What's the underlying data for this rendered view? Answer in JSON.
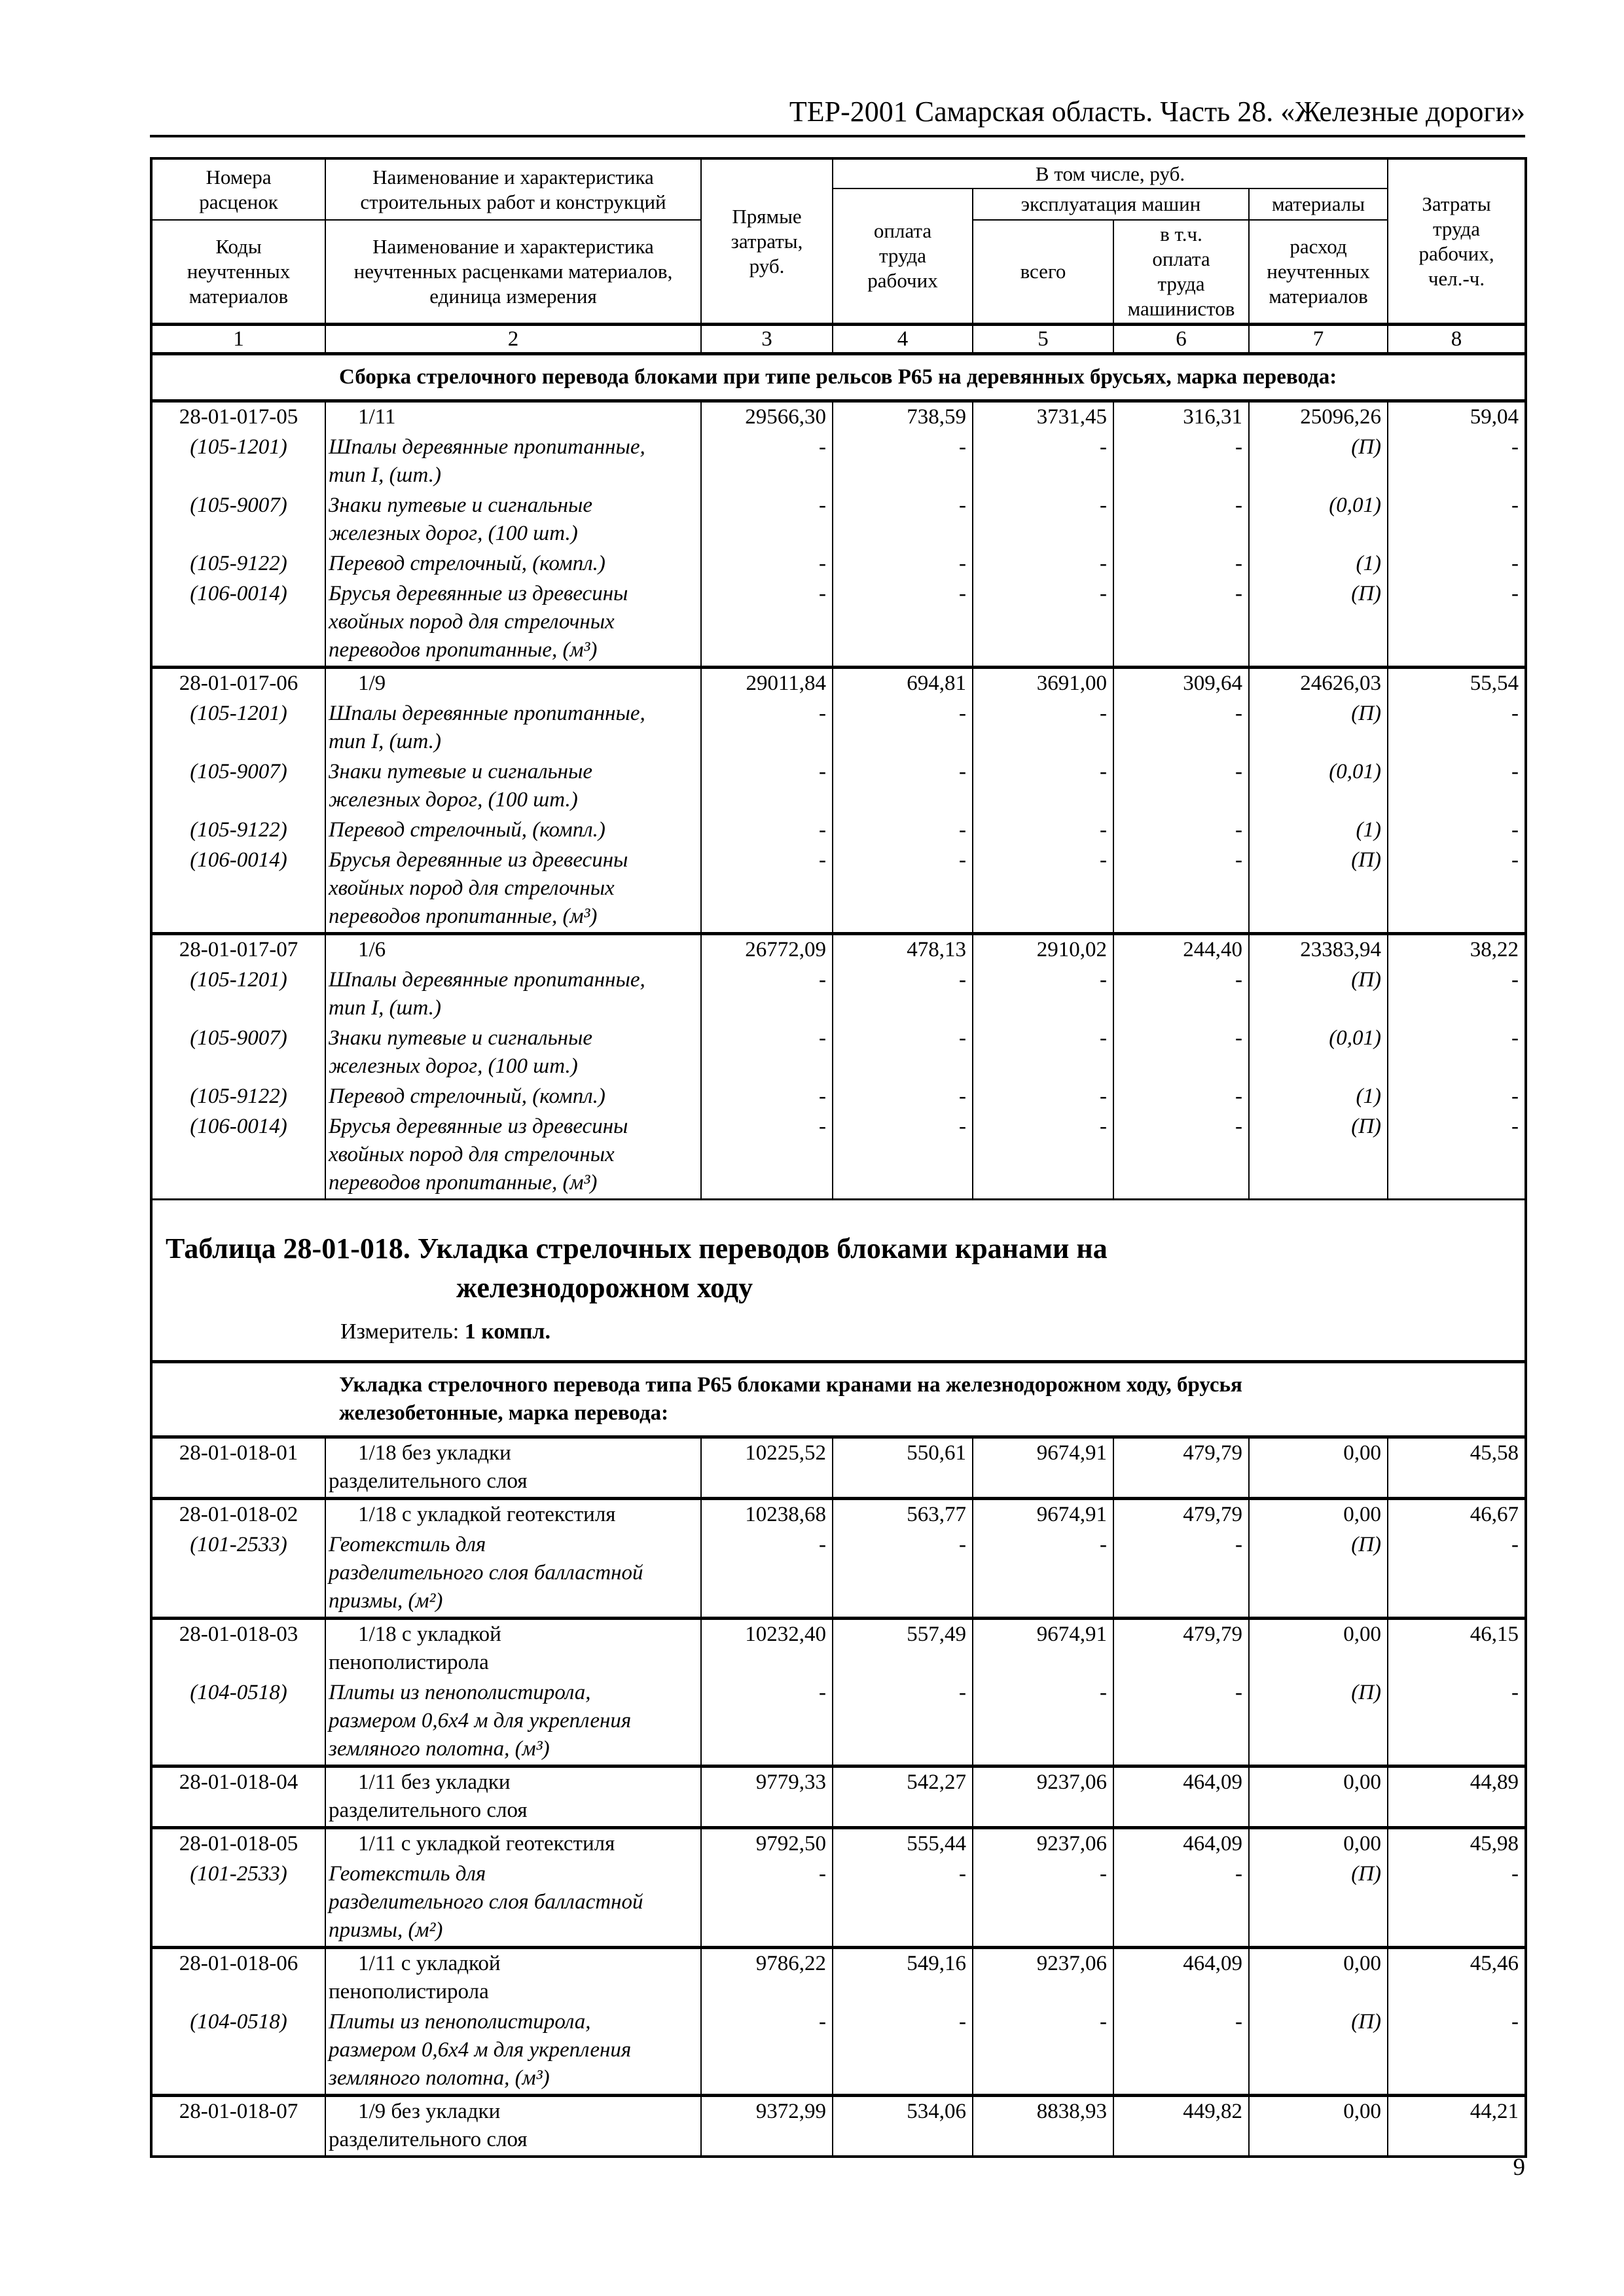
{
  "page": {
    "header_title": "ТЕР-2001 Самарская область. Часть 28. «Железные дороги»",
    "page_number": "9",
    "colors": {
      "ink": "#000000",
      "paper": "#ffffff"
    }
  },
  "table_header": {
    "col1_top": "Номера\nрасценок",
    "col1_bottom": "Коды\nнеучтенных\nматериалов",
    "col2_top": "Наименование и характеристика\nстроительных работ и конструкций",
    "col2_bottom": "Наименование и характеристика\nнеучтенных расценками материалов,\nединица измерения",
    "col3": "Прямые\nзатраты,\nруб.",
    "group_incl": "В том числе, руб.",
    "col4": "оплата\nтруда\nрабочих",
    "group_machines": "эксплуатация машин",
    "col5": "всего",
    "col6": "в т.ч.\nоплата\nтруда\nмашинистов",
    "group_materials": "материалы",
    "col7": "расход\nнеучтенных\nматериалов",
    "col8": "Затраты\nтруда\nрабочих,\nчел.-ч.",
    "numbers": [
      "1",
      "2",
      "3",
      "4",
      "5",
      "6",
      "7",
      "8"
    ]
  },
  "section1": {
    "title": "Сборка стрелочного перевода блоками при типе рельсов Р65 на деревянных брусьях, марка перевода:",
    "blocks": [
      {
        "code": "28-01-017-05",
        "desc": "1/11",
        "values": [
          "29566,30",
          "738,59",
          "3731,45",
          "316,31",
          "25096,26",
          "59,04"
        ],
        "materials": [
          {
            "code": "(105-1201)",
            "name": "Шпалы деревянные пропитанные,\nтип I, (шт.)",
            "values": [
              "-",
              "-",
              "-",
              "-",
              "(П)",
              "-"
            ]
          },
          {
            "code": "(105-9007)",
            "name": "Знаки путевые и сигнальные\nжелезных дорог, (100 шт.)",
            "values": [
              "-",
              "-",
              "-",
              "-",
              "(0,01)",
              "-"
            ]
          },
          {
            "code": "(105-9122)",
            "name": "Перевод стрелочный, (компл.)",
            "values": [
              "-",
              "-",
              "-",
              "-",
              "(1)",
              "-"
            ]
          },
          {
            "code": "(106-0014)",
            "name": "Брусья деревянные из древесины\nхвойных пород для стрелочных\nпереводов пропитанные, (м³)",
            "values": [
              "-",
              "-",
              "-",
              "-",
              "(П)",
              "-"
            ]
          }
        ]
      },
      {
        "code": "28-01-017-06",
        "desc": "1/9",
        "values": [
          "29011,84",
          "694,81",
          "3691,00",
          "309,64",
          "24626,03",
          "55,54"
        ],
        "materials": [
          {
            "code": "(105-1201)",
            "name": "Шпалы деревянные пропитанные,\nтип I, (шт.)",
            "values": [
              "-",
              "-",
              "-",
              "-",
              "(П)",
              "-"
            ]
          },
          {
            "code": "(105-9007)",
            "name": "Знаки путевые и сигнальные\nжелезных дорог, (100 шт.)",
            "values": [
              "-",
              "-",
              "-",
              "-",
              "(0,01)",
              "-"
            ]
          },
          {
            "code": "(105-9122)",
            "name": "Перевод стрелочный, (компл.)",
            "values": [
              "-",
              "-",
              "-",
              "-",
              "(1)",
              "-"
            ]
          },
          {
            "code": "(106-0014)",
            "name": "Брусья деревянные из древесины\nхвойных пород для стрелочных\nпереводов пропитанные, (м³)",
            "values": [
              "-",
              "-",
              "-",
              "-",
              "(П)",
              "-"
            ]
          }
        ]
      },
      {
        "code": "28-01-017-07",
        "desc": "1/6",
        "values": [
          "26772,09",
          "478,13",
          "2910,02",
          "244,40",
          "23383,94",
          "38,22"
        ],
        "materials": [
          {
            "code": "(105-1201)",
            "name": "Шпалы деревянные пропитанные,\nтип I, (шт.)",
            "values": [
              "-",
              "-",
              "-",
              "-",
              "(П)",
              "-"
            ]
          },
          {
            "code": "(105-9007)",
            "name": "Знаки путевые и сигнальные\nжелезных дорог, (100 шт.)",
            "values": [
              "-",
              "-",
              "-",
              "-",
              "(0,01)",
              "-"
            ]
          },
          {
            "code": "(105-9122)",
            "name": "Перевод стрелочный, (компл.)",
            "values": [
              "-",
              "-",
              "-",
              "-",
              "(1)",
              "-"
            ]
          },
          {
            "code": "(106-0014)",
            "name": "Брусья деревянные из древесины\nхвойных пород для стрелочных\nпереводов пропитанные, (м³)",
            "values": [
              "-",
              "-",
              "-",
              "-",
              "(П)",
              "-"
            ]
          }
        ]
      }
    ]
  },
  "between": {
    "table_title": "Таблица 28-01-018. Укладка стрелочных переводов блоками кранами на\nжелезнодорожном ходу",
    "meter_label": "Измеритель:",
    "meter_value": "1 компл."
  },
  "section2": {
    "title": "Укладка стрелочного перевода типа Р65 блоками кранами на железнодорожном ходу, брусья\nжелезобетонные, марка перевода:",
    "blocks": [
      {
        "code": "28-01-018-01",
        "desc": "1/18 без укладки\nразделительного слоя",
        "values": [
          "10225,52",
          "550,61",
          "9674,91",
          "479,79",
          "0,00",
          "45,58"
        ],
        "materials": []
      },
      {
        "code": "28-01-018-02",
        "desc": "1/18 с укладкой геотекстиля",
        "values": [
          "10238,68",
          "563,77",
          "9674,91",
          "479,79",
          "0,00",
          "46,67"
        ],
        "materials": [
          {
            "code": "(101-2533)",
            "name": "Геотекстиль для\nразделительного слоя балластной\nпризмы, (м²)",
            "values": [
              "-",
              "-",
              "-",
              "-",
              "(П)",
              "-"
            ]
          }
        ]
      },
      {
        "code": "28-01-018-03",
        "desc": "1/18 с укладкой\nпенополистирола",
        "values": [
          "10232,40",
          "557,49",
          "9674,91",
          "479,79",
          "0,00",
          "46,15"
        ],
        "materials": [
          {
            "code": "(104-0518)",
            "name": "Плиты из пенополистирола,\nразмером 0,6х4 м для укрепления\nземляного полотна, (м³)",
            "values": [
              "-",
              "-",
              "-",
              "-",
              "(П)",
              "-"
            ]
          }
        ]
      },
      {
        "code": "28-01-018-04",
        "desc": "1/11 без укладки\nразделительного слоя",
        "values": [
          "9779,33",
          "542,27",
          "9237,06",
          "464,09",
          "0,00",
          "44,89"
        ],
        "materials": []
      },
      {
        "code": "28-01-018-05",
        "desc": "1/11 с укладкой геотекстиля",
        "values": [
          "9792,50",
          "555,44",
          "9237,06",
          "464,09",
          "0,00",
          "45,98"
        ],
        "materials": [
          {
            "code": "(101-2533)",
            "name": "Геотекстиль для\nразделительного слоя балластной\nпризмы, (м²)",
            "values": [
              "-",
              "-",
              "-",
              "-",
              "(П)",
              "-"
            ]
          }
        ]
      },
      {
        "code": "28-01-018-06",
        "desc": "1/11 с укладкой\nпенополистирола",
        "values": [
          "9786,22",
          "549,16",
          "9237,06",
          "464,09",
          "0,00",
          "45,46"
        ],
        "materials": [
          {
            "code": "(104-0518)",
            "name": "Плиты из пенополистирола,\nразмером 0,6х4 м для укрепления\nземляного полотна, (м³)",
            "values": [
              "-",
              "-",
              "-",
              "-",
              "(П)",
              "-"
            ]
          }
        ]
      },
      {
        "code": "28-01-018-07",
        "desc": "1/9 без укладки\nразделительного слоя",
        "values": [
          "9372,99",
          "534,06",
          "8838,93",
          "449,82",
          "0,00",
          "44,21"
        ],
        "materials": []
      }
    ]
  }
}
